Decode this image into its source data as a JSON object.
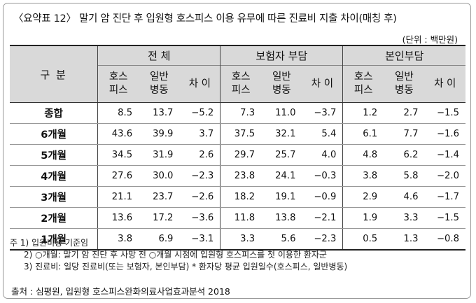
{
  "title": "〈요약표 12〉 말기 암 진단 후 입원형 호스피스 이용 유무에 따른 진료비 지출 차이(매칭 후)",
  "unit": "(단위 : 백만원)",
  "table": {
    "row_header": "구 분",
    "groups": [
      "전 체",
      "보험자 부담",
      "본인부담"
    ],
    "subheaders": [
      {
        "line1": "호스",
        "line2": "피스"
      },
      {
        "line1": "일반",
        "line2": "병동"
      },
      {
        "line1": "차 이",
        "line2": ""
      }
    ],
    "rows": [
      {
        "label": "종합",
        "values": [
          "8.5",
          "13.7",
          "−5.2",
          "7.3",
          "11.0",
          "−3.7",
          "1.2",
          "2.7",
          "−1.5"
        ]
      },
      {
        "label": "6개월",
        "values": [
          "43.6",
          "39.9",
          "3.7",
          "37.5",
          "32.1",
          "5.4",
          "6.1",
          "7.7",
          "−1.6"
        ]
      },
      {
        "label": "5개월",
        "values": [
          "34.5",
          "31.9",
          "2.6",
          "29.7",
          "25.7",
          "4.0",
          "4.8",
          "6.2",
          "−1.4"
        ]
      },
      {
        "label": "4개월",
        "values": [
          "27.6",
          "30.0",
          "−2.3",
          "23.8",
          "24.1",
          "−0.3",
          "3.8",
          "5.8",
          "−2.0"
        ]
      },
      {
        "label": "3개월",
        "values": [
          "21.1",
          "23.7",
          "−2.6",
          "18.2",
          "19.1",
          "−0.9",
          "2.9",
          "4.6",
          "−1.7"
        ]
      },
      {
        "label": "2개월",
        "values": [
          "13.6",
          "17.2",
          "−3.6",
          "11.8",
          "13.8",
          "−2.1",
          "1.9",
          "3.3",
          "−1.5"
        ]
      },
      {
        "label": "1개월",
        "values": [
          "3.8",
          "6.9",
          "−3.1",
          "3.3",
          "5.6",
          "−2.3",
          "0.5",
          "1.3",
          "−0.8"
        ]
      }
    ]
  },
  "notes": [
    "주 1) 입원비용 기준임",
    "2) ○개월: 말기 암 진단 후 사망 전 ○개월 시점에 입원형 호스피스를 첫 이용한 환자군",
    "3) 진료비: 일당 진료비(또는 보험자, 본인부담) * 환자당 평균 입원일수(호스피스, 일반병동)"
  ],
  "source": "출처 : 심평원, 입원형 호스피스완화의료사업효과분석 2018"
}
